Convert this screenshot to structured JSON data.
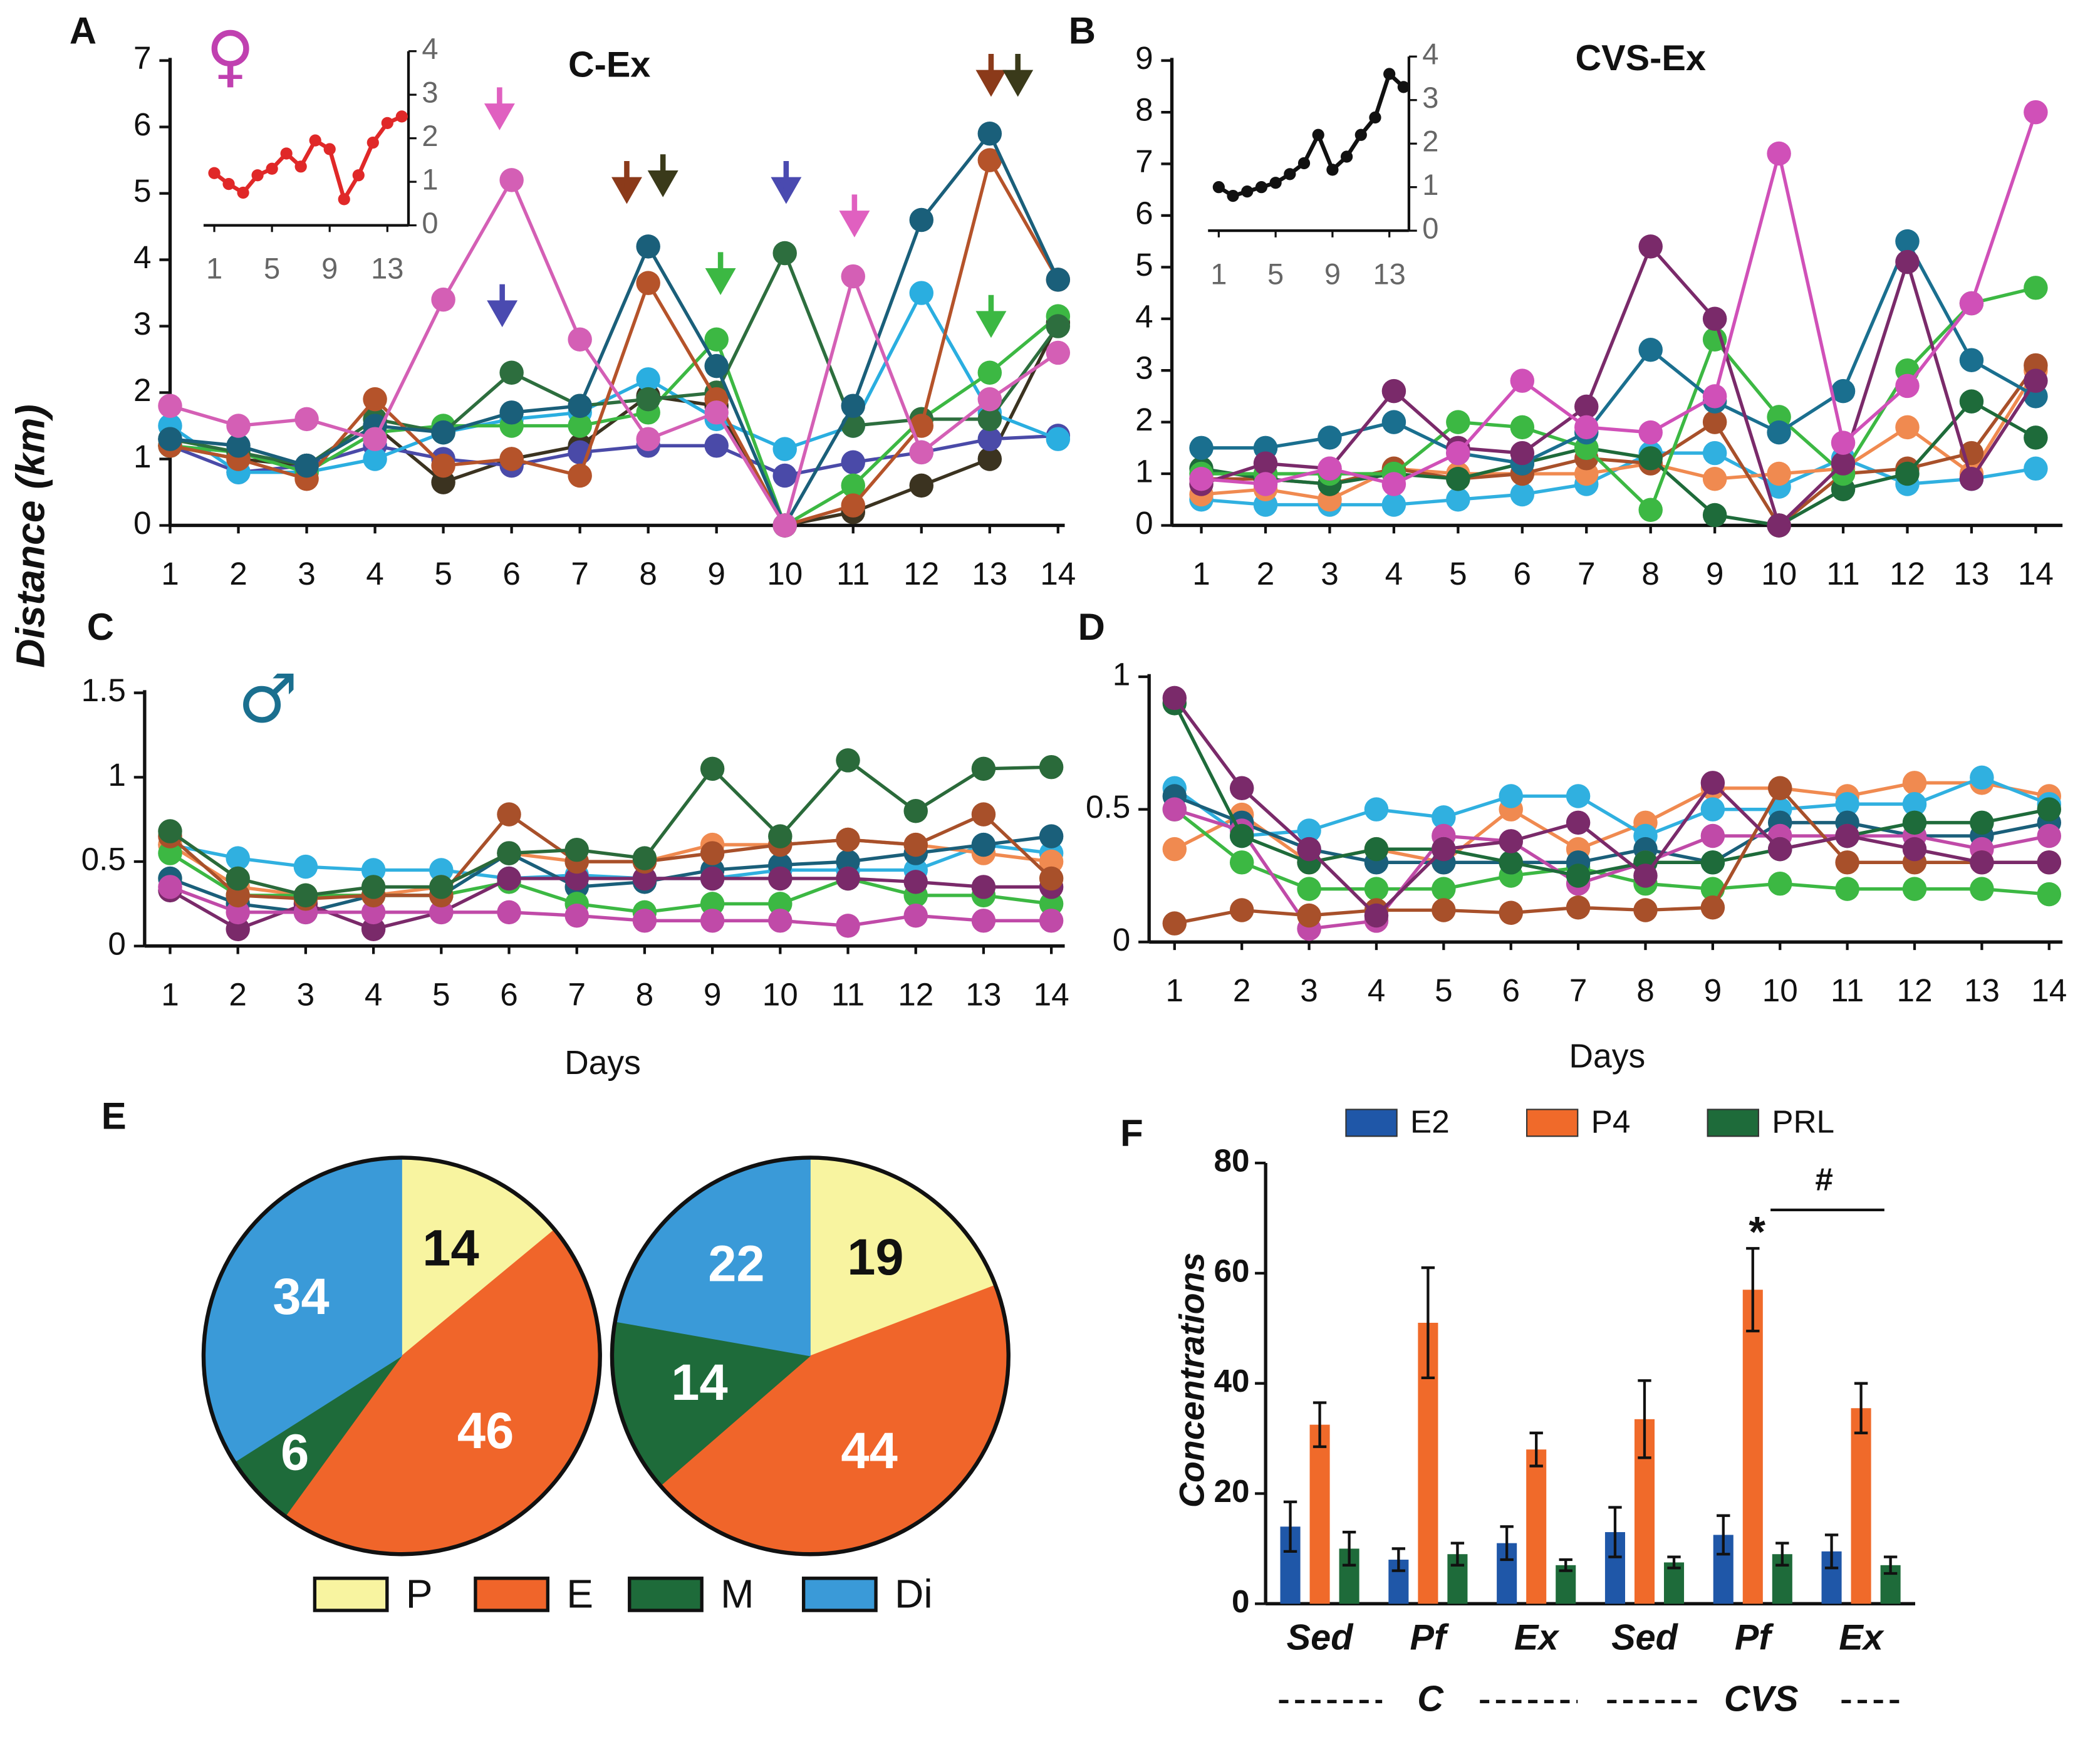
{
  "chart_data": [
    {
      "type": "line",
      "label": "A",
      "title": "C-Ex",
      "symbol": "♀",
      "symbol_color": "#c040b0",
      "ylabel": "Distance (km)",
      "x": [
        1,
        2,
        3,
        4,
        5,
        6,
        7,
        8,
        9,
        10,
        11,
        12,
        13,
        14
      ],
      "xlim": [
        1,
        14
      ],
      "xticks": [
        1,
        2,
        3,
        4,
        5,
        6,
        7,
        8,
        9,
        10,
        11,
        12,
        13,
        14
      ],
      "ylim": [
        0,
        7
      ],
      "yticks": [
        0,
        1,
        2,
        3,
        4,
        5,
        6,
        7
      ],
      "series": [
        {
          "color": "#3b3320",
          "values": [
            1.2,
            1.0,
            0.9,
            1.5,
            0.65,
            1.0,
            1.2,
            1.95,
            1.8,
            0,
            0.2,
            0.6,
            1.0,
            3.05
          ]
        },
        {
          "color": "#4a4aa8",
          "values": [
            1.2,
            0.8,
            0.9,
            1.2,
            1.0,
            0.9,
            1.1,
            1.2,
            1.2,
            0.75,
            0.95,
            1.1,
            1.3,
            1.35
          ]
        },
        {
          "color": "#2aaee0",
          "values": [
            1.5,
            0.8,
            0.8,
            1.0,
            1.4,
            1.6,
            1.7,
            2.2,
            1.6,
            1.15,
            1.5,
            3.5,
            1.7,
            1.3
          ]
        },
        {
          "color": "#3cb843",
          "values": [
            1.2,
            1.1,
            0.8,
            1.4,
            1.5,
            1.5,
            1.5,
            1.7,
            2.8,
            0,
            0.6,
            1.6,
            2.3,
            3.15
          ]
        },
        {
          "color": "#2d6e3e",
          "values": [
            1.3,
            1.1,
            0.9,
            1.6,
            1.4,
            2.3,
            1.8,
            1.9,
            2.0,
            4.1,
            1.5,
            1.6,
            1.6,
            3.0
          ]
        },
        {
          "color": "#b5532a",
          "values": [
            1.2,
            1.0,
            0.7,
            1.9,
            0.9,
            1.0,
            0.75,
            3.65,
            1.9,
            0,
            0.3,
            1.5,
            5.5,
            3.7
          ]
        },
        {
          "color": "#1a5f7a",
          "values": [
            1.3,
            1.2,
            0.9,
            1.5,
            1.4,
            1.7,
            1.8,
            4.2,
            2.4,
            0,
            1.8,
            4.6,
            5.9,
            3.7
          ]
        },
        {
          "color": "#d45fb5",
          "values": [
            1.8,
            1.5,
            1.6,
            1.3,
            3.4,
            5.2,
            2.8,
            1.3,
            1.7,
            0,
            3.75,
            1.1,
            1.9,
            2.6
          ]
        }
      ],
      "inset": {
        "type": "line",
        "color": "#e02828",
        "x": [
          1,
          2,
          3,
          4,
          5,
          6,
          7,
          8,
          9,
          10,
          11,
          12,
          13,
          14
        ],
        "xlim": [
          1,
          14
        ],
        "xticks": [
          1,
          5,
          9,
          13
        ],
        "ylim": [
          0,
          4
        ],
        "yticks": [
          0,
          1,
          2,
          3,
          4
        ],
        "values": [
          1.2,
          0.95,
          0.75,
          1.15,
          1.3,
          1.65,
          1.35,
          1.95,
          1.75,
          0.6,
          1.15,
          1.9,
          2.35,
          2.5
        ]
      }
    },
    {
      "type": "line",
      "label": "B",
      "title": "CVS-Ex",
      "x": [
        1,
        2,
        3,
        4,
        5,
        6,
        7,
        8,
        9,
        10,
        11,
        12,
        13,
        14
      ],
      "xlim": [
        1,
        14
      ],
      "xticks": [
        1,
        2,
        3,
        4,
        5,
        6,
        7,
        8,
        9,
        10,
        11,
        12,
        13,
        14
      ],
      "ylim": [
        0,
        9
      ],
      "yticks": [
        0,
        1,
        2,
        3,
        4,
        5,
        6,
        7,
        8,
        9
      ],
      "series": [
        {
          "color": "#30b0e0",
          "values": [
            0.5,
            0.4,
            0.4,
            0.4,
            0.5,
            0.6,
            0.8,
            1.4,
            1.4,
            0.75,
            1.3,
            0.8,
            0.9,
            1.1
          ]
        },
        {
          "color": "#f08a50",
          "values": [
            0.6,
            0.7,
            0.5,
            1.1,
            1.0,
            1.0,
            1.0,
            1.2,
            0.9,
            1.0,
            1.1,
            1.9,
            1.0,
            3.0
          ]
        },
        {
          "color": "#a8502a",
          "values": [
            0.9,
            0.9,
            0.8,
            1.1,
            0.9,
            1.0,
            1.3,
            1.2,
            2.0,
            0,
            1.0,
            1.1,
            1.4,
            3.1
          ]
        },
        {
          "color": "#1e6b3a",
          "values": [
            1.1,
            0.9,
            0.8,
            1.0,
            0.9,
            1.2,
            1.5,
            1.3,
            0.2,
            0,
            0.7,
            1.0,
            2.4,
            1.7
          ]
        },
        {
          "color": "#3cb843",
          "values": [
            1.0,
            1.0,
            1.0,
            1.0,
            2.0,
            1.9,
            1.5,
            0.3,
            3.6,
            2.1,
            1.0,
            3.0,
            4.3,
            4.6
          ]
        },
        {
          "color": "#1a6f8f",
          "values": [
            1.5,
            1.5,
            1.7,
            2.0,
            1.4,
            1.2,
            1.8,
            3.4,
            2.4,
            1.8,
            2.6,
            5.5,
            3.2,
            2.5
          ]
        },
        {
          "color": "#7a2a6a",
          "values": [
            0.8,
            1.2,
            1.1,
            2.6,
            1.5,
            1.4,
            2.3,
            5.4,
            4.0,
            0,
            1.2,
            5.1,
            0.9,
            2.8
          ]
        },
        {
          "color": "#d050b8",
          "values": [
            0.9,
            0.8,
            1.1,
            0.8,
            1.4,
            2.8,
            1.9,
            1.8,
            2.5,
            7.2,
            1.6,
            2.7,
            4.3,
            8.0
          ]
        }
      ],
      "inset": {
        "type": "line",
        "color": "#111111",
        "x": [
          1,
          2,
          3,
          4,
          5,
          6,
          7,
          8,
          9,
          10,
          11,
          12,
          13,
          14
        ],
        "xlim": [
          1,
          14
        ],
        "xticks": [
          1,
          5,
          9,
          13
        ],
        "ylim": [
          0,
          4
        ],
        "yticks": [
          0,
          1,
          2,
          3,
          4
        ],
        "values": [
          1.0,
          0.8,
          0.9,
          1.0,
          1.1,
          1.3,
          1.55,
          2.2,
          1.4,
          1.7,
          2.2,
          2.6,
          3.6,
          3.3
        ]
      }
    },
    {
      "type": "line",
      "label": "C",
      "symbol": "♂",
      "symbol_color": "#1a6f8f",
      "xlabel": "Days",
      "x": [
        1,
        2,
        3,
        4,
        5,
        6,
        7,
        8,
        9,
        10,
        11,
        12,
        13,
        14
      ],
      "xlim": [
        1,
        14
      ],
      "xticks": [
        1,
        2,
        3,
        4,
        5,
        6,
        7,
        8,
        9,
        10,
        11,
        12,
        13,
        14
      ],
      "ylim": [
        0,
        1.5
      ],
      "yticks": [
        0,
        0.5,
        1,
        1.5
      ],
      "series": [
        {
          "color": "#30b0e0",
          "values": [
            0.6,
            0.52,
            0.47,
            0.45,
            0.45,
            0.4,
            0.42,
            0.4,
            0.4,
            0.45,
            0.45,
            0.45,
            0.6,
            0.55
          ]
        },
        {
          "color": "#f08a50",
          "values": [
            0.6,
            0.35,
            0.3,
            0.3,
            0.35,
            0.55,
            0.5,
            0.5,
            0.6,
            0.6,
            0.63,
            0.6,
            0.55,
            0.5
          ]
        },
        {
          "color": "#1a5f7a",
          "values": [
            0.4,
            0.25,
            0.2,
            0.3,
            0.3,
            0.55,
            0.35,
            0.38,
            0.45,
            0.48,
            0.5,
            0.55,
            0.6,
            0.65
          ]
        },
        {
          "color": "#3cb843",
          "values": [
            0.55,
            0.3,
            0.3,
            0.3,
            0.3,
            0.38,
            0.25,
            0.2,
            0.25,
            0.25,
            0.4,
            0.3,
            0.3,
            0.25
          ]
        },
        {
          "color": "#7a2a6a",
          "values": [
            0.33,
            0.1,
            0.25,
            0.1,
            0.2,
            0.4,
            0.4,
            0.4,
            0.4,
            0.4,
            0.4,
            0.38,
            0.35,
            0.35
          ]
        },
        {
          "color": "#c04aa8",
          "values": [
            0.35,
            0.2,
            0.2,
            0.2,
            0.2,
            0.2,
            0.18,
            0.15,
            0.15,
            0.15,
            0.12,
            0.18,
            0.15,
            0.15
          ]
        },
        {
          "color": "#a8502a",
          "values": [
            0.65,
            0.3,
            0.28,
            0.3,
            0.3,
            0.78,
            0.5,
            0.5,
            0.55,
            0.6,
            0.63,
            0.6,
            0.78,
            0.4
          ]
        },
        {
          "color": "#2a6a3a",
          "values": [
            0.68,
            0.4,
            0.3,
            0.35,
            0.35,
            0.55,
            0.57,
            0.52,
            1.05,
            0.65,
            1.1,
            0.8,
            1.05,
            1.06
          ]
        }
      ]
    },
    {
      "type": "line",
      "label": "D",
      "xlabel": "Days",
      "x": [
        1,
        2,
        3,
        4,
        5,
        6,
        7,
        8,
        9,
        10,
        11,
        12,
        13,
        14
      ],
      "xlim": [
        1,
        14
      ],
      "xticks": [
        1,
        2,
        3,
        4,
        5,
        6,
        7,
        8,
        9,
        10,
        11,
        12,
        13,
        14
      ],
      "ylim": [
        0,
        1
      ],
      "yticks": [
        0,
        0.5,
        1
      ],
      "series": [
        {
          "color": "#f08a50",
          "values": [
            0.35,
            0.48,
            0.3,
            0.35,
            0.3,
            0.5,
            0.35,
            0.45,
            0.58,
            0.58,
            0.55,
            0.6,
            0.6,
            0.55
          ]
        },
        {
          "color": "#30b0e0",
          "values": [
            0.58,
            0.4,
            0.42,
            0.5,
            0.47,
            0.55,
            0.55,
            0.4,
            0.5,
            0.5,
            0.52,
            0.52,
            0.62,
            0.52
          ]
        },
        {
          "color": "#3cb843",
          "values": [
            0.5,
            0.3,
            0.2,
            0.2,
            0.2,
            0.25,
            0.28,
            0.22,
            0.2,
            0.22,
            0.2,
            0.2,
            0.2,
            0.18
          ]
        },
        {
          "color": "#1a5f7a",
          "values": [
            0.55,
            0.45,
            0.35,
            0.3,
            0.3,
            0.3,
            0.3,
            0.35,
            0.3,
            0.45,
            0.45,
            0.4,
            0.4,
            0.45
          ]
        },
        {
          "color": "#c04aa8",
          "values": [
            0.5,
            0.42,
            0.05,
            0.08,
            0.4,
            0.38,
            0.22,
            0.3,
            0.4,
            0.4,
            0.4,
            0.4,
            0.35,
            0.4
          ]
        },
        {
          "color": "#1e6b3a",
          "values": [
            0.9,
            0.4,
            0.3,
            0.35,
            0.35,
            0.3,
            0.25,
            0.3,
            0.3,
            0.35,
            0.4,
            0.45,
            0.45,
            0.5
          ]
        },
        {
          "color": "#a8502a",
          "values": [
            0.07,
            0.12,
            0.1,
            0.12,
            0.12,
            0.11,
            0.13,
            0.12,
            0.13,
            0.58,
            0.3,
            0.3,
            0.3,
            0.3
          ]
        },
        {
          "color": "#7a2a6a",
          "values": [
            0.92,
            0.58,
            0.35,
            0.1,
            0.35,
            0.38,
            0.45,
            0.25,
            0.6,
            0.35,
            0.4,
            0.35,
            0.3,
            0.3
          ]
        }
      ]
    },
    {
      "type": "pie",
      "label": "E",
      "categories": [
        "P",
        "E",
        "M",
        "Di"
      ],
      "colors": [
        "#f8f4a0",
        "#f0652a",
        "#1e6b3a",
        "#3a9ad8"
      ],
      "pies": [
        {
          "values": [
            14,
            46,
            6,
            34
          ]
        },
        {
          "values": [
            19,
            44,
            14,
            22
          ]
        }
      ]
    },
    {
      "type": "bar",
      "label": "F",
      "ylabel": "Concentrations",
      "categories": [
        "Sed",
        "Pf",
        "Ex",
        "Sed",
        "Pf",
        "Ex"
      ],
      "groups": [
        "C",
        "CVS"
      ],
      "annotations": [
        "*",
        "#"
      ],
      "ylim": [
        0,
        80
      ],
      "yticks": [
        0,
        20,
        40,
        60,
        80
      ],
      "series": [
        {
          "name": "E2",
          "color": "#1f57a8",
          "values": [
            14,
            8,
            11,
            13,
            12.5,
            9.5
          ],
          "errors": [
            4.5,
            2,
            3,
            4.5,
            3.5,
            3
          ]
        },
        {
          "name": "P4",
          "color": "#f06a2a",
          "values": [
            32.5,
            51,
            28,
            33.5,
            57,
            35.5
          ],
          "errors": [
            4,
            10,
            3,
            7,
            7.5,
            4.5
          ]
        },
        {
          "name": "PRL",
          "color": "#1e6b3a",
          "values": [
            10,
            9,
            7,
            7.5,
            9,
            7
          ],
          "errors": [
            3,
            2,
            1,
            1,
            2,
            1.5
          ]
        }
      ]
    }
  ]
}
